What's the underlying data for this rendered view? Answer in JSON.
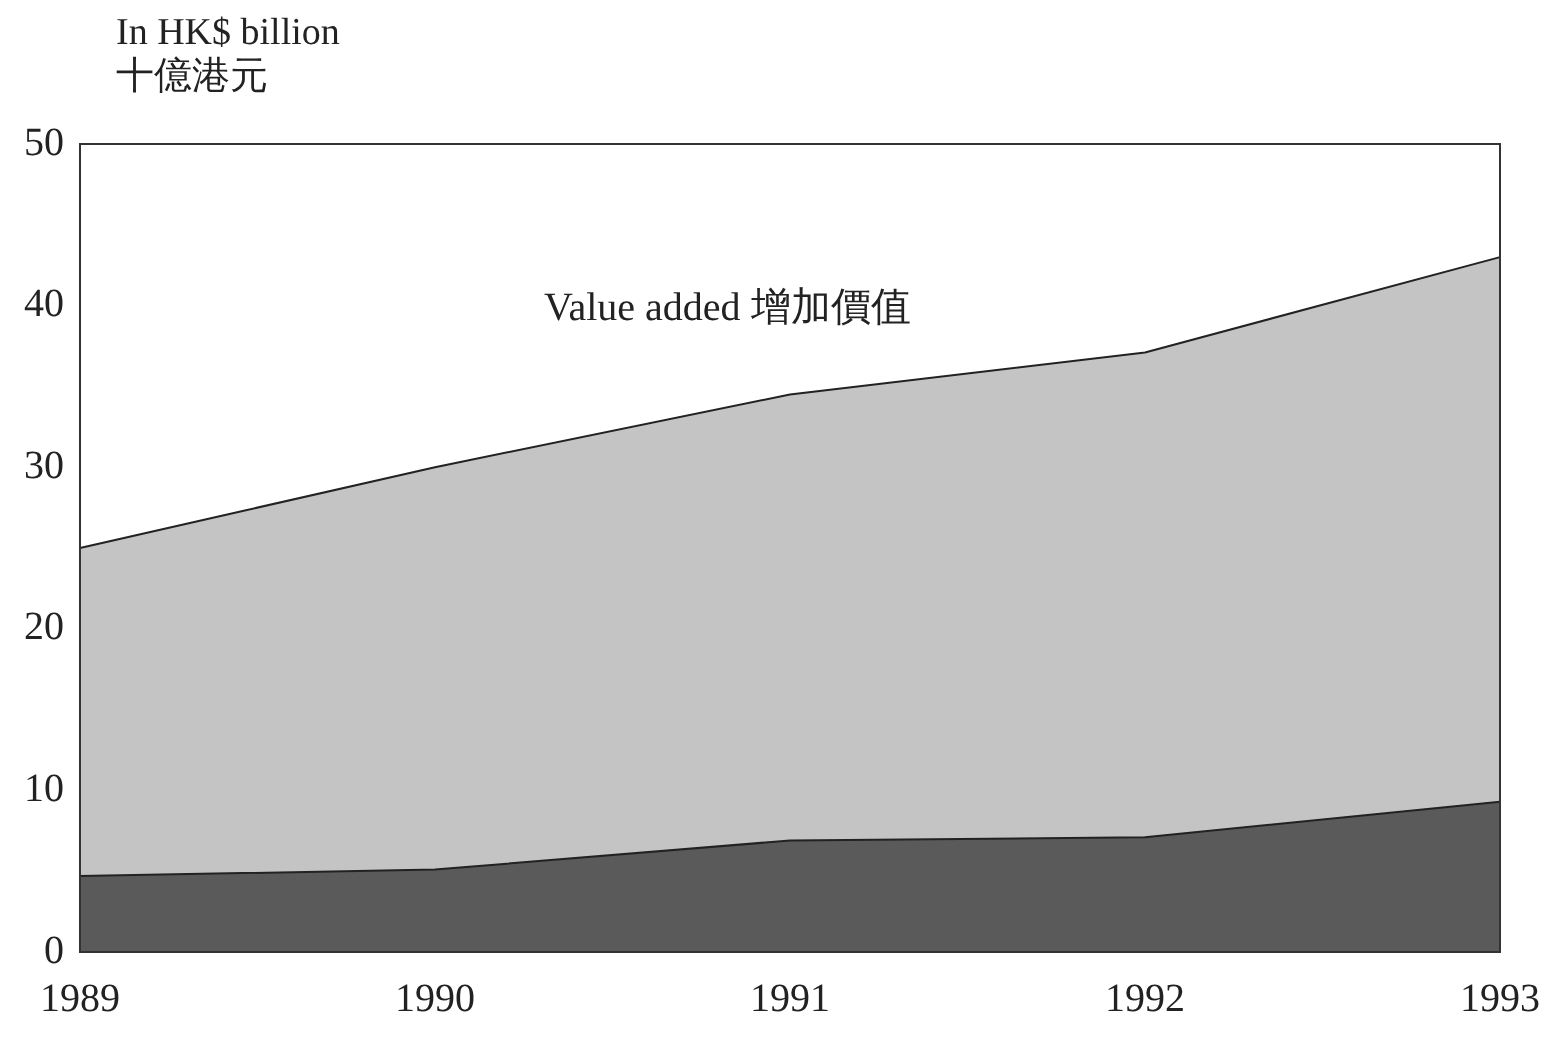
{
  "chart_data": {
    "type": "area",
    "stacked": true,
    "ylabel": "In HK$ billion\n十億港元",
    "categories": [
      "1989",
      "1990",
      "1991",
      "1992",
      "1993"
    ],
    "series": [
      {
        "color": "#5a5a5a",
        "values": [
          4.7,
          5.1,
          6.9,
          7.1,
          9.3
        ]
      },
      {
        "color": "#c4c4c4",
        "values": [
          20.3,
          24.9,
          27.6,
          30.0,
          33.7
        ]
      }
    ],
    "ylim": [
      0,
      50
    ],
    "yticks": [
      0,
      10,
      20,
      30,
      40,
      50
    ],
    "grid": false,
    "legend": false,
    "annotations": [
      "Value added 增加價值"
    ]
  }
}
